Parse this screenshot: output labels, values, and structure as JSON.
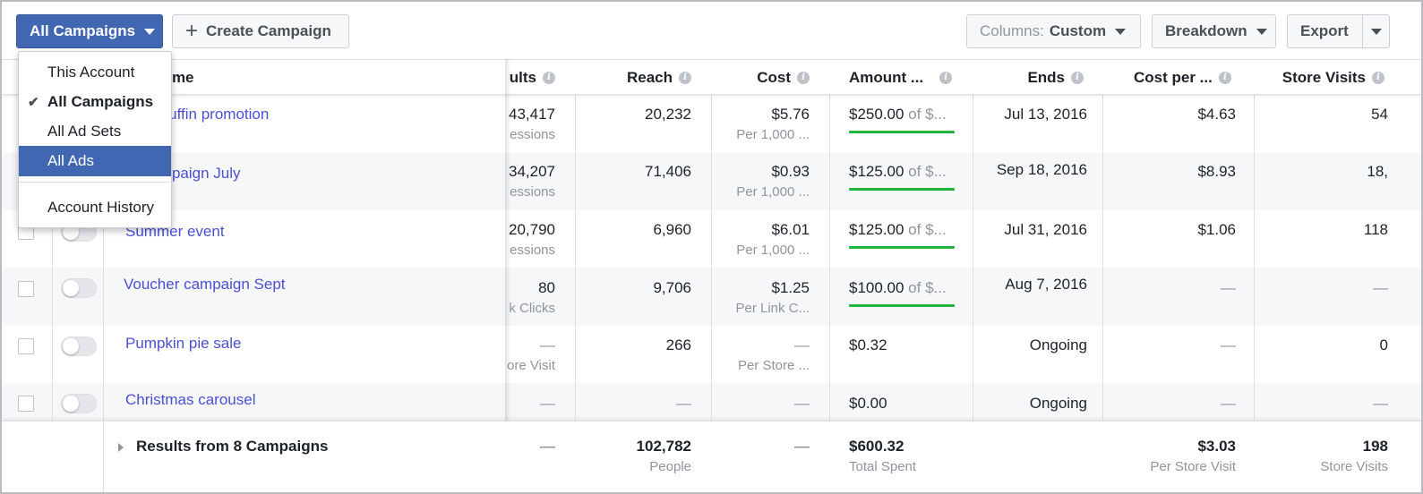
{
  "toolbar": {
    "all_campaigns": "All Campaigns",
    "create_campaign": "Create Campaign",
    "columns_prefix": "Columns:",
    "columns_value": "Custom",
    "breakdown": "Breakdown",
    "export": "Export"
  },
  "menu": {
    "items": [
      {
        "label": "This Account"
      },
      {
        "label": "All Campaigns",
        "checked": "✔"
      },
      {
        "label": "All Ad Sets"
      },
      {
        "label": "All Ads"
      }
    ],
    "history": "Account History"
  },
  "headers": {
    "name": "ign Name",
    "results": "ults",
    "reach": "Reach",
    "cost": "Cost",
    "amount": "Amount ...",
    "ends": "Ends",
    "cost_per": "Cost per ...",
    "store_visits": "Store Visits"
  },
  "rows": [
    {
      "name": "erry muffin promotion",
      "results": "43,417",
      "results_sub": "essions",
      "reach": "20,232",
      "cost": "$5.76",
      "cost_sub": "Per 1,000 ...",
      "amount": "$250.00",
      "amount_sub": " of $...",
      "ends": "Jul 13, 2016",
      "cost_per": "$4.63",
      "store_visits": "54"
    },
    {
      "name": "er campaign July",
      "results": "34,207",
      "results_sub": "essions",
      "reach": "71,406",
      "cost": "$0.93",
      "cost_sub": "Per 1,000 ...",
      "amount": "$125.00",
      "amount_sub": " of $...",
      "ends": "Sep 18, 2016",
      "cost_per": "$8.93",
      "store_visits": "18,"
    },
    {
      "name": "Summer event",
      "results": "20,790",
      "results_sub": "essions",
      "reach": "6,960",
      "cost": "$6.01",
      "cost_sub": "Per 1,000 ...",
      "amount": "$125.00",
      "amount_sub": " of $...",
      "ends": "Jul 31, 2016",
      "cost_per": "$1.06",
      "store_visits": "118"
    },
    {
      "name": "Voucher campaign Sept",
      "results": "80",
      "results_sub": "k Clicks",
      "reach": "9,706",
      "cost": "$1.25",
      "cost_sub": "Per Link C...",
      "amount": "$100.00",
      "amount_sub": " of $...",
      "ends": "Aug 7, 2016",
      "cost_per": "—",
      "store_visits": "—"
    },
    {
      "name": "Pumpkin pie sale",
      "results": "—",
      "results_sub": "ore Visit",
      "reach": "266",
      "cost": "—",
      "cost_sub": "Per Store ...",
      "amount": "$0.32",
      "amount_sub": "",
      "ends": "Ongoing",
      "cost_per": "—",
      "store_visits": "0"
    },
    {
      "name": "Christmas carousel",
      "results": "—",
      "results_sub": "",
      "reach": "—",
      "cost": "—",
      "cost_sub": "",
      "amount": "$0.00",
      "amount_sub": "",
      "ends": "Ongoing",
      "cost_per": "—",
      "store_visits": "—"
    }
  ],
  "totals": {
    "label": "Results from 8 Campaigns",
    "results": "—",
    "reach": "102,782",
    "reach_sub": "People",
    "cost": "—",
    "amount": "$600.32",
    "amount_sub": "Total Spent",
    "cost_per": "$3.03",
    "cost_per_sub": "Per Store Visit",
    "store_visits": "198",
    "store_visits_sub": "Store Visits"
  }
}
